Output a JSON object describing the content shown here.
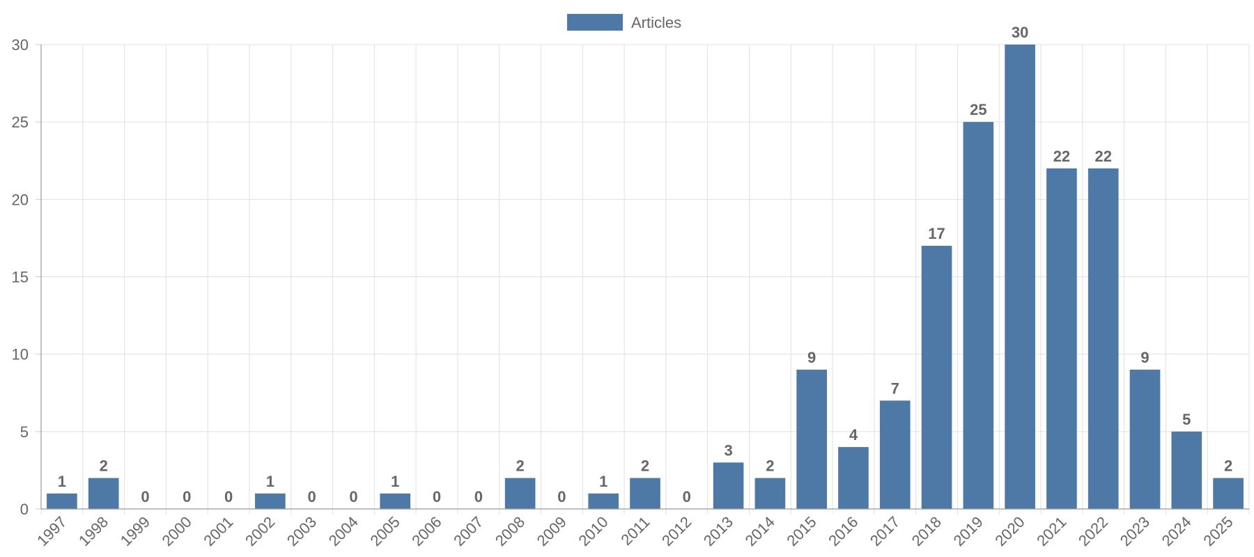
{
  "chart_data": {
    "type": "bar",
    "title": "",
    "xlabel": "",
    "ylabel": "",
    "categories": [
      "1997",
      "1998",
      "1999",
      "2000",
      "2001",
      "2002",
      "2003",
      "2004",
      "2005",
      "2006",
      "2007",
      "2008",
      "2009",
      "2010",
      "2011",
      "2012",
      "2013",
      "2014",
      "2015",
      "2016",
      "2017",
      "2018",
      "2019",
      "2020",
      "2021",
      "2022",
      "2023",
      "2024",
      "2025"
    ],
    "series": [
      {
        "name": "Articles",
        "color": "#4e79a7",
        "values": [
          1,
          2,
          0,
          0,
          0,
          1,
          0,
          0,
          1,
          0,
          0,
          2,
          0,
          1,
          2,
          0,
          3,
          2,
          9,
          4,
          7,
          17,
          25,
          30,
          22,
          22,
          9,
          5,
          2
        ]
      }
    ],
    "ylim": [
      0,
      30
    ],
    "yticks": [
      0,
      5,
      10,
      15,
      20,
      25,
      30
    ],
    "grid": true,
    "legend_position": "top-center",
    "data_labels": true,
    "x_tick_rotation": "rotated"
  }
}
